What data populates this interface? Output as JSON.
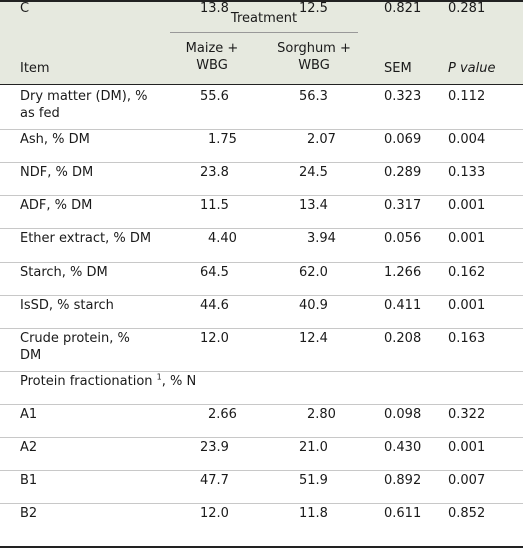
{
  "header": {
    "treatment": "Treatment",
    "item": "Item",
    "maize_l1": "Maize +",
    "maize_l2": "WBG",
    "sorghum_l1": "Sorghum +",
    "sorghum_l2": "WBG",
    "sem": "SEM",
    "p_value": "P value"
  },
  "rows": [
    {
      "item_l1": "Dry matter (DM), %",
      "item_l2": "as fed",
      "maize": "55.6",
      "sorghum": "56.3",
      "sem": "0.323",
      "p": "0.112"
    },
    {
      "item_l1": "Ash, % DM",
      "maize": "1.75",
      "sorghum": "2.07",
      "sem": "0.069",
      "p": "0.004"
    },
    {
      "item_l1": "NDF, % DM",
      "maize": "23.8",
      "sorghum": "24.5",
      "sem": "0.289",
      "p": "0.133"
    },
    {
      "item_l1": "ADF, % DM",
      "maize": "11.5",
      "sorghum": "13.4",
      "sem": "0.317",
      "p": "0.001"
    },
    {
      "item_l1": "Ether extract, % DM",
      "maize": "4.40",
      "sorghum": "3.94",
      "sem": "0.056",
      "p": "0.001"
    },
    {
      "item_l1": "Starch, % DM",
      "maize": "64.5",
      "sorghum": "62.0",
      "sem": "1.266",
      "p": "0.162"
    },
    {
      "item_l1": "IsSD, % starch",
      "maize": "44.6",
      "sorghum": "40.9",
      "sem": "0.411",
      "p": "0.001"
    },
    {
      "item_l1": "Crude protein, %",
      "item_l2": "DM",
      "maize": "12.0",
      "sorghum": "12.4",
      "sem": "0.208",
      "p": "0.163"
    }
  ],
  "section": {
    "label": "Protein fractionation",
    "sup": "1",
    "unit": ", % N"
  },
  "fractions": [
    {
      "item": "A1",
      "maize": "2.66",
      "sorghum": "2.80",
      "sem": "0.098",
      "p": "0.322"
    },
    {
      "item": "A2",
      "maize": "23.9",
      "sorghum": "21.0",
      "sem": "0.430",
      "p": "0.001"
    },
    {
      "item": "B1",
      "maize": "47.7",
      "sorghum": "51.9",
      "sem": "0.892",
      "p": "0.007"
    },
    {
      "item": "B2",
      "maize": "12.0",
      "sorghum": "11.8",
      "sem": "0.611",
      "p": "0.852"
    },
    {
      "item": "C",
      "maize": "13.8",
      "sorghum": "12.5",
      "sem": "0.821",
      "p": "0.281"
    }
  ]
}
